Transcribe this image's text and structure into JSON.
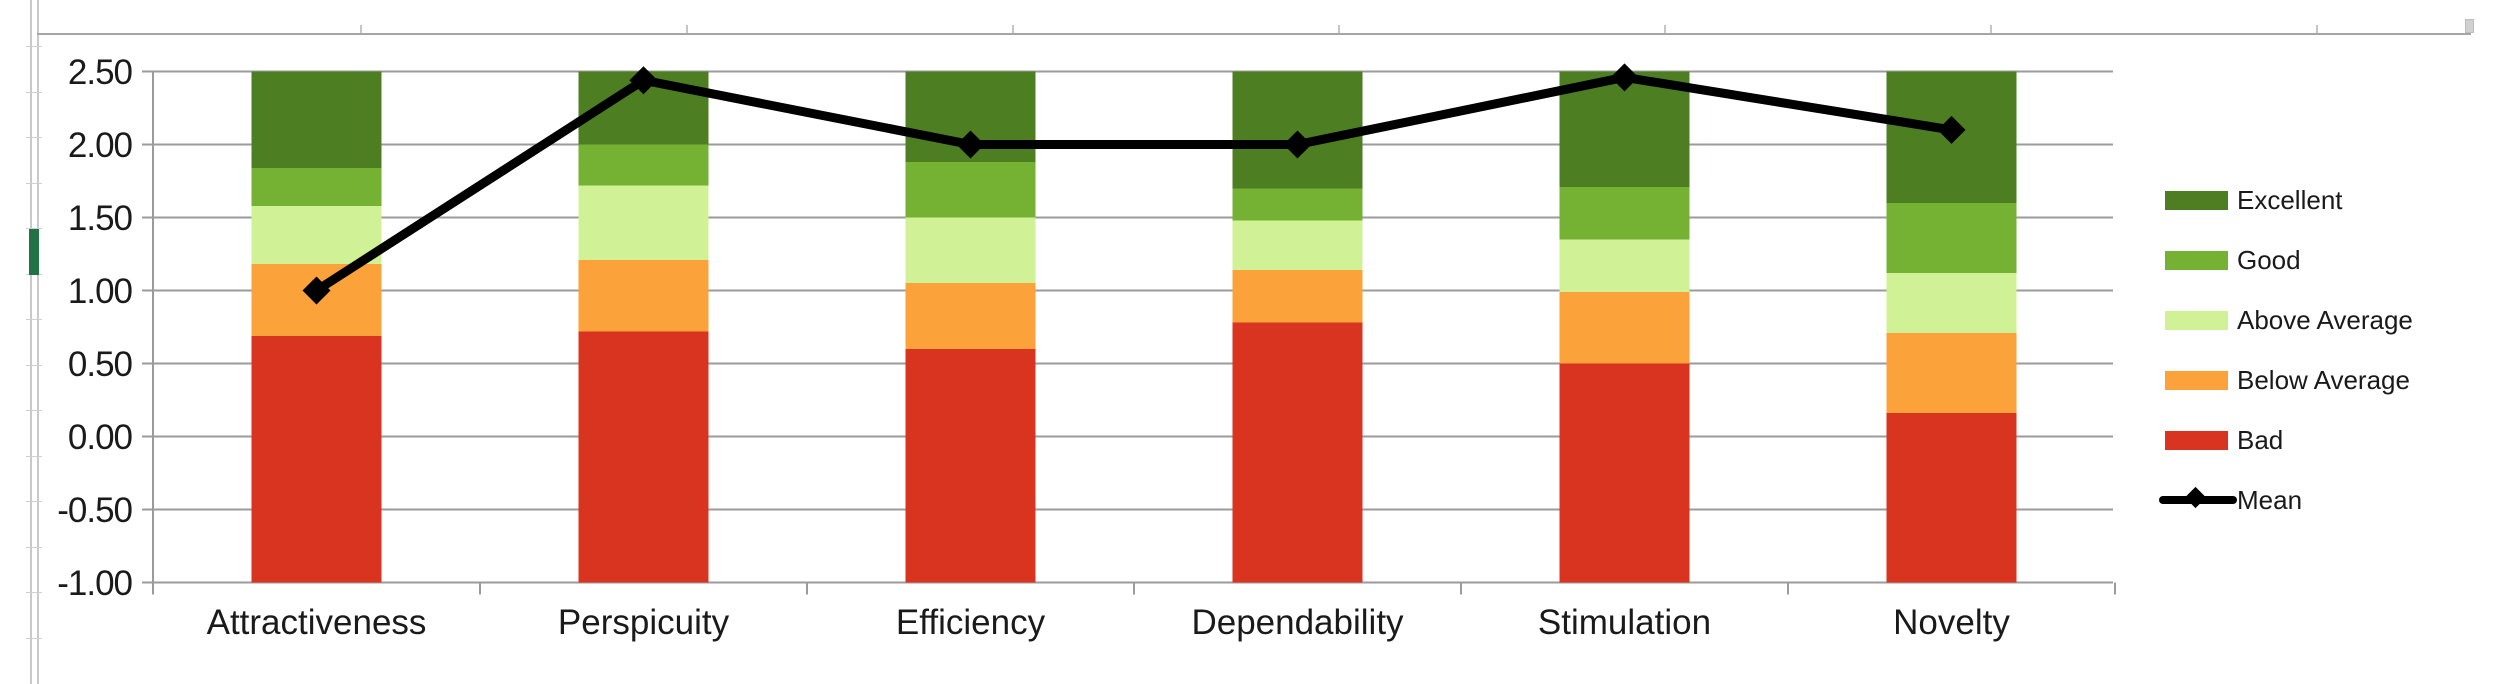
{
  "chart_data": {
    "type": "bar",
    "subtype": "stacked-bars-with-mean-line",
    "title": "",
    "categories": [
      "Attractiveness",
      "Perspicuity",
      "Efficiency",
      "Dependability",
      "Stimulation",
      "Novelty"
    ],
    "y_tick_labels": [
      "2.50",
      "2.00",
      "1.50",
      "1.00",
      "0.50",
      "0.00",
      "-0.50",
      "-1.00"
    ],
    "ylim": [
      -1.0,
      2.5
    ],
    "stack_base": -1.0,
    "grid": true,
    "series": [
      {
        "name": "Bad",
        "color": "#d9341f",
        "segment_top_values": [
          0.69,
          0.72,
          0.6,
          0.78,
          0.5,
          0.16
        ]
      },
      {
        "name": "Below Average",
        "color": "#fba23a",
        "segment_top_values": [
          1.18,
          1.21,
          1.05,
          1.14,
          0.99,
          0.71
        ]
      },
      {
        "name": "Above Average",
        "color": "#d0f195",
        "segment_top_values": [
          1.58,
          1.72,
          1.5,
          1.48,
          1.35,
          1.12
        ]
      },
      {
        "name": "Good",
        "color": "#75b234",
        "segment_top_values": [
          1.84,
          2.0,
          1.88,
          1.7,
          1.71,
          1.6
        ]
      },
      {
        "name": "Excellent",
        "color": "#4e7e22",
        "segment_top_values": [
          2.5,
          2.5,
          2.5,
          2.5,
          2.5,
          2.5
        ]
      }
    ],
    "line_series": {
      "name": "Mean",
      "color": "#000000",
      "values": [
        1.0,
        2.44,
        2.0,
        2.0,
        2.46,
        2.1
      ]
    },
    "legend_position": "right",
    "legend_items": [
      {
        "label": "Excellent",
        "color": "#4e7e22",
        "marker": "box"
      },
      {
        "label": "Good",
        "color": "#75b234",
        "marker": "box"
      },
      {
        "label": "Above Average",
        "color": "#d0f195",
        "marker": "box"
      },
      {
        "label": "Below Average",
        "color": "#fba23a",
        "marker": "box"
      },
      {
        "label": "Bad",
        "color": "#d9341f",
        "marker": "box"
      },
      {
        "label": "Mean",
        "color": "#000000",
        "marker": "line"
      }
    ]
  },
  "ui_colors": {
    "gridline": "#9b9b9b",
    "axis_line": "#9b9b9b",
    "chart_frame": "#a6a6a6",
    "excel_gridline": "#c9c9c9",
    "excel_selection_green": "#217346"
  }
}
